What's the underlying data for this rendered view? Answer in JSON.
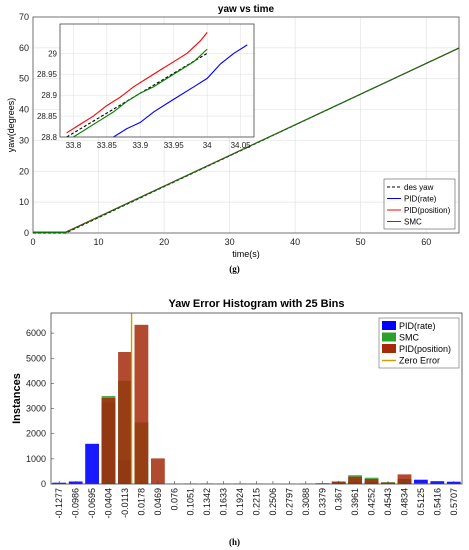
{
  "figure": {
    "caption_g": "(g)",
    "caption_h": "(h)"
  },
  "chart_data": [
    {
      "type": "line",
      "title": "yaw vs time",
      "xlabel": "time(s)",
      "ylabel": "yaw(degrees)",
      "xlim": [
        0,
        65
      ],
      "ylim": [
        0,
        70
      ],
      "xticks": [
        0,
        10,
        20,
        30,
        40,
        50,
        60
      ],
      "yticks": [
        0,
        10,
        20,
        30,
        40,
        50,
        60,
        70
      ],
      "grid": true,
      "legend_position": "lower-right",
      "series": [
        {
          "name": "des yaw",
          "color": "#000000",
          "dash": true,
          "x": [
            0,
            5,
            65
          ],
          "y": [
            0,
            0,
            60
          ]
        },
        {
          "name": "PID(rate)",
          "color": "#0000ff",
          "x": [
            0,
            5,
            65
          ],
          "y": [
            0.3,
            0.3,
            59.9
          ]
        },
        {
          "name": "PID(position)",
          "color": "#ff0000",
          "x": [
            0,
            5,
            65
          ],
          "y": [
            0.3,
            0.3,
            59.95
          ]
        },
        {
          "name": "SMC",
          "color": "#008000",
          "x": [
            0,
            5,
            65
          ],
          "y": [
            0.2,
            0.2,
            60
          ]
        }
      ],
      "inset": {
        "xlim": [
          33.78,
          34.07
        ],
        "ylim": [
          28.8,
          29.07
        ],
        "xticks": [
          "33.8",
          "33.85",
          "33.9",
          "33.95",
          "34",
          "34.05"
        ],
        "yticks": [
          "28.8",
          "28.85",
          "28.9",
          "28.95",
          "29"
        ],
        "series": [
          {
            "name": "des yaw",
            "color": "#000000",
            "dash": true,
            "x": [
              33.79,
              34.0
            ],
            "y": [
              28.8,
              29.0
            ]
          },
          {
            "name": "PID(rate)",
            "color": "#0000ff",
            "x": [
              33.86,
              33.88,
              33.9,
              33.92,
              33.94,
              33.96,
              33.98,
              34.0,
              34.02,
              34.04,
              34.06
            ],
            "y": [
              28.8,
              28.82,
              28.835,
              28.86,
              28.88,
              28.9,
              28.92,
              28.94,
              28.975,
              29.0,
              29.02
            ]
          },
          {
            "name": "PID(position)",
            "color": "#ff0000",
            "x": [
              33.79,
              33.81,
              33.83,
              33.85,
              33.87,
              33.89,
              33.91,
              33.93,
              33.95,
              33.97,
              33.99,
              34.0
            ],
            "y": [
              28.81,
              28.83,
              28.85,
              28.875,
              28.895,
              28.92,
              28.94,
              28.96,
              28.98,
              29.0,
              29.03,
              29.05
            ]
          },
          {
            "name": "SMC",
            "color": "#008000",
            "x": [
              33.8,
              33.82,
              33.84,
              33.86,
              33.88,
              33.9,
              33.92,
              33.94,
              33.96,
              33.98,
              34.0
            ],
            "y": [
              28.8,
              28.82,
              28.84,
              28.86,
              28.885,
              28.905,
              28.92,
              28.94,
              28.96,
              28.98,
              29.01
            ]
          }
        ]
      }
    },
    {
      "type": "bar",
      "title": "Yaw Error Histogram with 25 Bins",
      "ylabel": "Instances",
      "xlabel": "",
      "ylim": [
        0,
        6800
      ],
      "yticks": [
        0,
        1000,
        2000,
        3000,
        4000,
        5000,
        6000
      ],
      "categories": [
        "-0.1277",
        "-0.0986",
        "-0.0695",
        "-0.0404",
        "-0.0113",
        "0.0178",
        "0.0469",
        "0.076",
        "0.1051",
        "0.1342",
        "0.1633",
        "0.1924",
        "0.2215",
        "0.2506",
        "0.2797",
        "0.3088",
        "0.3379",
        "0.367",
        "0.3961",
        "0.4252",
        "0.4543",
        "0.4834",
        "0.5125",
        "0.5416",
        "0.5707"
      ],
      "legend_position": "top-right",
      "series": [
        {
          "name": "PID(rate)",
          "color": "#0000ff",
          "values": [
            50,
            100,
            1600,
            3250,
            950,
            0,
            0,
            10,
            15,
            20,
            15,
            15,
            10,
            5,
            5,
            10,
            20,
            50,
            100,
            80,
            60,
            200,
            170,
            110,
            90
          ]
        },
        {
          "name": "SMC",
          "color": "#2ca02c",
          "values": [
            0,
            0,
            0,
            3500,
            4100,
            2450,
            0,
            0,
            0,
            0,
            0,
            0,
            0,
            0,
            0,
            0,
            20,
            100,
            350,
            250,
            70,
            200,
            40,
            0,
            0
          ]
        },
        {
          "name": "PID(position)",
          "color": "#a52a0a",
          "values": [
            0,
            0,
            0,
            3420,
            5250,
            6330,
            1020,
            0,
            0,
            0,
            0,
            0,
            0,
            0,
            0,
            0,
            30,
            100,
            290,
            200,
            60,
            380,
            20,
            0,
            0
          ]
        }
      ],
      "reference_line": {
        "name": "Zero Error",
        "color": "#c8a000",
        "x": 0
      }
    }
  ]
}
